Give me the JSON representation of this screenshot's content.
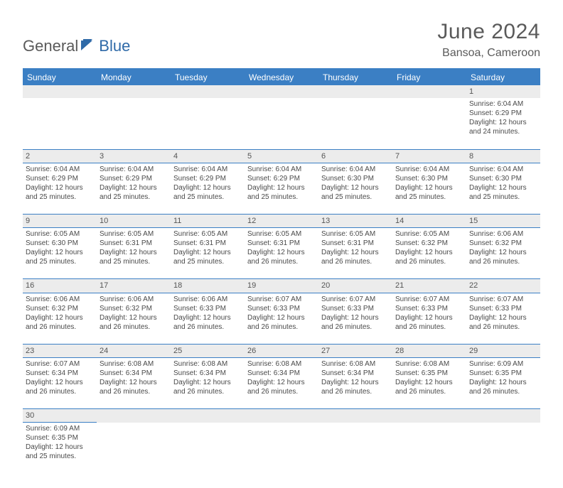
{
  "logo": {
    "part1": "General",
    "part2": "Blue"
  },
  "title": "June 2024",
  "subtitle": "Bansoa, Cameroon",
  "colors": {
    "header_bg": "#3b7fc4",
    "header_text": "#ffffff",
    "daynum_bg": "#ececec",
    "border": "#3b7fc4",
    "body_text": "#4a4a4a",
    "title_text": "#5a5a5a",
    "logo_blue": "#2f6aa8"
  },
  "typography": {
    "title_fontsize": 30,
    "subtitle_fontsize": 16,
    "header_fontsize": 12,
    "daynum_fontsize": 11,
    "detail_fontsize": 10
  },
  "day_headers": [
    "Sunday",
    "Monday",
    "Tuesday",
    "Wednesday",
    "Thursday",
    "Friday",
    "Saturday"
  ],
  "weeks": [
    [
      null,
      null,
      null,
      null,
      null,
      null,
      {
        "n": "1",
        "sr": "Sunrise: 6:04 AM",
        "ss": "Sunset: 6:29 PM",
        "d1": "Daylight: 12 hours",
        "d2": "and 24 minutes."
      }
    ],
    [
      {
        "n": "2",
        "sr": "Sunrise: 6:04 AM",
        "ss": "Sunset: 6:29 PM",
        "d1": "Daylight: 12 hours",
        "d2": "and 25 minutes."
      },
      {
        "n": "3",
        "sr": "Sunrise: 6:04 AM",
        "ss": "Sunset: 6:29 PM",
        "d1": "Daylight: 12 hours",
        "d2": "and 25 minutes."
      },
      {
        "n": "4",
        "sr": "Sunrise: 6:04 AM",
        "ss": "Sunset: 6:29 PM",
        "d1": "Daylight: 12 hours",
        "d2": "and 25 minutes."
      },
      {
        "n": "5",
        "sr": "Sunrise: 6:04 AM",
        "ss": "Sunset: 6:29 PM",
        "d1": "Daylight: 12 hours",
        "d2": "and 25 minutes."
      },
      {
        "n": "6",
        "sr": "Sunrise: 6:04 AM",
        "ss": "Sunset: 6:30 PM",
        "d1": "Daylight: 12 hours",
        "d2": "and 25 minutes."
      },
      {
        "n": "7",
        "sr": "Sunrise: 6:04 AM",
        "ss": "Sunset: 6:30 PM",
        "d1": "Daylight: 12 hours",
        "d2": "and 25 minutes."
      },
      {
        "n": "8",
        "sr": "Sunrise: 6:04 AM",
        "ss": "Sunset: 6:30 PM",
        "d1": "Daylight: 12 hours",
        "d2": "and 25 minutes."
      }
    ],
    [
      {
        "n": "9",
        "sr": "Sunrise: 6:05 AM",
        "ss": "Sunset: 6:30 PM",
        "d1": "Daylight: 12 hours",
        "d2": "and 25 minutes."
      },
      {
        "n": "10",
        "sr": "Sunrise: 6:05 AM",
        "ss": "Sunset: 6:31 PM",
        "d1": "Daylight: 12 hours",
        "d2": "and 25 minutes."
      },
      {
        "n": "11",
        "sr": "Sunrise: 6:05 AM",
        "ss": "Sunset: 6:31 PM",
        "d1": "Daylight: 12 hours",
        "d2": "and 25 minutes."
      },
      {
        "n": "12",
        "sr": "Sunrise: 6:05 AM",
        "ss": "Sunset: 6:31 PM",
        "d1": "Daylight: 12 hours",
        "d2": "and 26 minutes."
      },
      {
        "n": "13",
        "sr": "Sunrise: 6:05 AM",
        "ss": "Sunset: 6:31 PM",
        "d1": "Daylight: 12 hours",
        "d2": "and 26 minutes."
      },
      {
        "n": "14",
        "sr": "Sunrise: 6:05 AM",
        "ss": "Sunset: 6:32 PM",
        "d1": "Daylight: 12 hours",
        "d2": "and 26 minutes."
      },
      {
        "n": "15",
        "sr": "Sunrise: 6:06 AM",
        "ss": "Sunset: 6:32 PM",
        "d1": "Daylight: 12 hours",
        "d2": "and 26 minutes."
      }
    ],
    [
      {
        "n": "16",
        "sr": "Sunrise: 6:06 AM",
        "ss": "Sunset: 6:32 PM",
        "d1": "Daylight: 12 hours",
        "d2": "and 26 minutes."
      },
      {
        "n": "17",
        "sr": "Sunrise: 6:06 AM",
        "ss": "Sunset: 6:32 PM",
        "d1": "Daylight: 12 hours",
        "d2": "and 26 minutes."
      },
      {
        "n": "18",
        "sr": "Sunrise: 6:06 AM",
        "ss": "Sunset: 6:33 PM",
        "d1": "Daylight: 12 hours",
        "d2": "and 26 minutes."
      },
      {
        "n": "19",
        "sr": "Sunrise: 6:07 AM",
        "ss": "Sunset: 6:33 PM",
        "d1": "Daylight: 12 hours",
        "d2": "and 26 minutes."
      },
      {
        "n": "20",
        "sr": "Sunrise: 6:07 AM",
        "ss": "Sunset: 6:33 PM",
        "d1": "Daylight: 12 hours",
        "d2": "and 26 minutes."
      },
      {
        "n": "21",
        "sr": "Sunrise: 6:07 AM",
        "ss": "Sunset: 6:33 PM",
        "d1": "Daylight: 12 hours",
        "d2": "and 26 minutes."
      },
      {
        "n": "22",
        "sr": "Sunrise: 6:07 AM",
        "ss": "Sunset: 6:33 PM",
        "d1": "Daylight: 12 hours",
        "d2": "and 26 minutes."
      }
    ],
    [
      {
        "n": "23",
        "sr": "Sunrise: 6:07 AM",
        "ss": "Sunset: 6:34 PM",
        "d1": "Daylight: 12 hours",
        "d2": "and 26 minutes."
      },
      {
        "n": "24",
        "sr": "Sunrise: 6:08 AM",
        "ss": "Sunset: 6:34 PM",
        "d1": "Daylight: 12 hours",
        "d2": "and 26 minutes."
      },
      {
        "n": "25",
        "sr": "Sunrise: 6:08 AM",
        "ss": "Sunset: 6:34 PM",
        "d1": "Daylight: 12 hours",
        "d2": "and 26 minutes."
      },
      {
        "n": "26",
        "sr": "Sunrise: 6:08 AM",
        "ss": "Sunset: 6:34 PM",
        "d1": "Daylight: 12 hours",
        "d2": "and 26 minutes."
      },
      {
        "n": "27",
        "sr": "Sunrise: 6:08 AM",
        "ss": "Sunset: 6:34 PM",
        "d1": "Daylight: 12 hours",
        "d2": "and 26 minutes."
      },
      {
        "n": "28",
        "sr": "Sunrise: 6:08 AM",
        "ss": "Sunset: 6:35 PM",
        "d1": "Daylight: 12 hours",
        "d2": "and 26 minutes."
      },
      {
        "n": "29",
        "sr": "Sunrise: 6:09 AM",
        "ss": "Sunset: 6:35 PM",
        "d1": "Daylight: 12 hours",
        "d2": "and 26 minutes."
      }
    ],
    [
      {
        "n": "30",
        "sr": "Sunrise: 6:09 AM",
        "ss": "Sunset: 6:35 PM",
        "d1": "Daylight: 12 hours",
        "d2": "and 25 minutes."
      },
      null,
      null,
      null,
      null,
      null,
      null
    ]
  ]
}
